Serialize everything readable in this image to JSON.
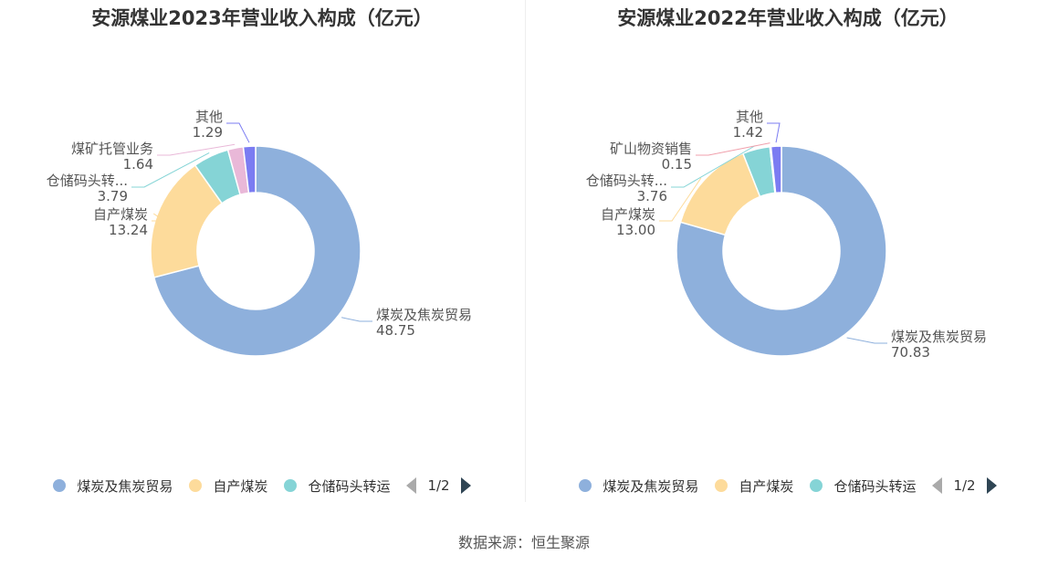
{
  "charts": [
    {
      "title": "安源煤业2023年营业收入构成（亿元）",
      "legend": [
        "煤炭及焦炭贸易",
        "自产煤炭",
        "仓储码头转运"
      ],
      "pager": "1/2"
    },
    {
      "title": "安源煤业2022年营业收入构成（亿元）",
      "legend": [
        "煤炭及焦炭贸易",
        "自产煤炭",
        "仓储码头转运"
      ],
      "pager": "1/2"
    }
  ],
  "source": "数据来源：恒生聚源",
  "chart_data": [
    {
      "type": "pie",
      "title": "安源煤业2023年营业收入构成（亿元）",
      "slices": [
        {
          "name": "煤炭及焦炭贸易",
          "label": "煤炭及焦炭贸易",
          "value": 48.75,
          "value_text": "48.75",
          "color": "#8eb0dc"
        },
        {
          "name": "自产煤炭",
          "label": "自产煤炭",
          "value": 13.24,
          "value_text": "13.24",
          "color": "#fddb9b"
        },
        {
          "name": "仓储码头转运",
          "label": "仓储码头转...",
          "value": 3.79,
          "value_text": "3.79",
          "color": "#85d4d6"
        },
        {
          "name": "煤矿托管业务",
          "label": "煤矿托管业务",
          "value": 1.64,
          "value_text": "1.64",
          "color": "#e9b8d8"
        },
        {
          "name": "其他",
          "label": "其他",
          "value": 1.29,
          "value_text": "1.29",
          "color": "#7b7cf2"
        }
      ]
    },
    {
      "type": "pie",
      "title": "安源煤业2022年营业收入构成（亿元）",
      "slices": [
        {
          "name": "煤炭及焦炭贸易",
          "label": "煤炭及焦炭贸易",
          "value": 70.83,
          "value_text": "70.83",
          "color": "#8eb0dc"
        },
        {
          "name": "自产煤炭",
          "label": "自产煤炭",
          "value": 13.0,
          "value_text": "13.00",
          "color": "#fddb9b"
        },
        {
          "name": "仓储码头转运",
          "label": "仓储码头转...",
          "value": 3.76,
          "value_text": "3.76",
          "color": "#85d4d6"
        },
        {
          "name": "矿山物资销售",
          "label": "矿山物资销售",
          "value": 0.15,
          "value_text": "0.15",
          "color": "#f0a0ac"
        },
        {
          "name": "其他",
          "label": "其他",
          "value": 1.42,
          "value_text": "1.42",
          "color": "#7b7cf2"
        }
      ]
    }
  ]
}
